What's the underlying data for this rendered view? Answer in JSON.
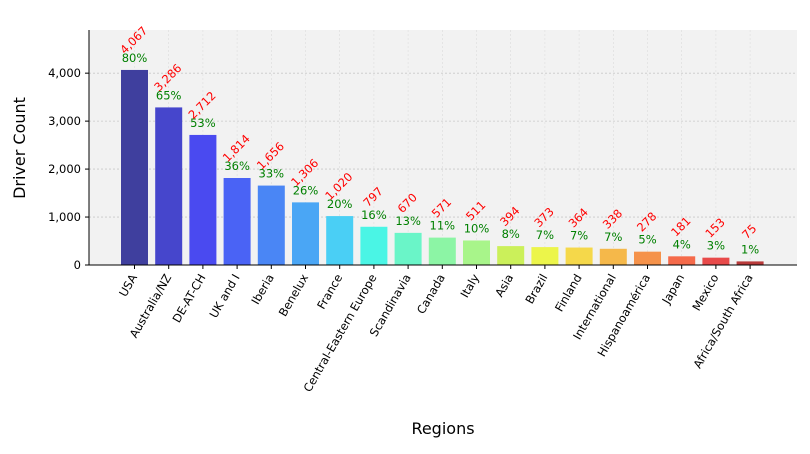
{
  "chart_data": {
    "type": "bar",
    "xlabel": "Regions",
    "ylabel": "Driver Count",
    "ylim": [
      0,
      4900
    ],
    "yticks": [
      0,
      1000,
      2000,
      3000,
      4000
    ],
    "ytick_labels": [
      "0",
      "1,000",
      "2,000",
      "3,000",
      "4,000"
    ],
    "grid": true,
    "categories": [
      "USA",
      "Australia/NZ",
      "DE-AT-CH",
      "UK and I",
      "Iberia",
      "Benelux",
      "France",
      "Central-Eastern Europe",
      "Scandinavia",
      "Canada",
      "Italy",
      "Asia",
      "Brazil",
      "Finland",
      "International",
      "Hispanoamérica",
      "Japan",
      "Mexico",
      "Africa/South Africa"
    ],
    "values": [
      4067,
      3286,
      2712,
      1814,
      1656,
      1306,
      1020,
      797,
      670,
      571,
      511,
      394,
      373,
      364,
      338,
      278,
      181,
      153,
      75
    ],
    "value_labels": [
      "4,067",
      "3,286",
      "2,712",
      "1,814",
      "1,656",
      "1,306",
      "1,020",
      "797",
      "670",
      "571",
      "511",
      "394",
      "373",
      "364",
      "338",
      "278",
      "181",
      "153",
      "75"
    ],
    "percent_labels": [
      "80%",
      "65%",
      "53%",
      "36%",
      "33%",
      "26%",
      "20%",
      "16%",
      "13%",
      "11%",
      "10%",
      "8%",
      "7%",
      "7%",
      "7%",
      "5%",
      "4%",
      "3%",
      "1%"
    ],
    "colors": [
      "#3f3f9e",
      "#4646cc",
      "#4a4af0",
      "#4a63f5",
      "#4a86f5",
      "#4aa6f5",
      "#4acff5",
      "#4af5e5",
      "#6af5c8",
      "#8cf5a5",
      "#a8f58a",
      "#cbf05a",
      "#ecf54a",
      "#f5d84a",
      "#f5b84a",
      "#f5924a",
      "#f56a4a",
      "#e84a4a",
      "#b83a3a"
    ],
    "value_label_color": "#ff0000",
    "percent_label_color": "#008000",
    "plot_background": "#f2f2f2"
  }
}
